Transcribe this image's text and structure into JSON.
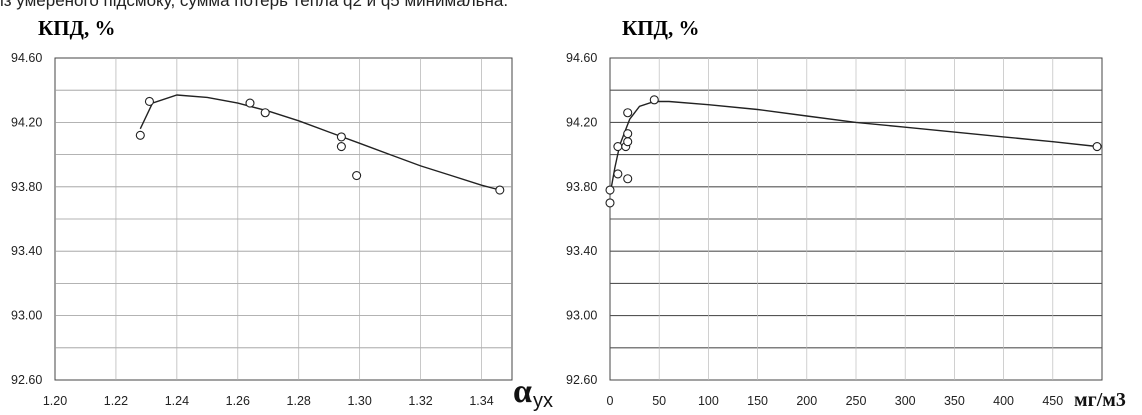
{
  "caption_fragment": "із умереного підсмоку, сумма потерь тепла q2 и q5 минимальна.",
  "chart_data": [
    {
      "type": "scatter",
      "title": "КПД, %",
      "xlabel": "αух",
      "xlabel_main": "α",
      "xlabel_sub": "ух",
      "ylabel": "КПД, %",
      "xlim": [
        1.2,
        1.35
      ],
      "ylim": [
        92.6,
        94.6
      ],
      "xticks": [
        "1.20",
        "1.22",
        "1.24",
        "1.26",
        "1.28",
        "1.30",
        "1.32",
        "1.34"
      ],
      "xtick_values": [
        1.2,
        1.22,
        1.24,
        1.26,
        1.28,
        1.3,
        1.32,
        1.34
      ],
      "yticks": [
        "94.60",
        "94.20",
        "93.80",
        "93.40",
        "93.00",
        "92.60"
      ],
      "ytick_values": [
        94.6,
        94.2,
        93.8,
        93.4,
        93.0,
        92.6
      ],
      "grid": true,
      "points": [
        {
          "x": 1.228,
          "y": 94.12
        },
        {
          "x": 1.231,
          "y": 94.33
        },
        {
          "x": 1.264,
          "y": 94.32
        },
        {
          "x": 1.269,
          "y": 94.26
        },
        {
          "x": 1.294,
          "y": 94.11
        },
        {
          "x": 1.294,
          "y": 94.05
        },
        {
          "x": 1.299,
          "y": 93.87
        },
        {
          "x": 1.346,
          "y": 93.78
        }
      ],
      "trend": [
        {
          "x": 1.228,
          "y": 94.16
        },
        {
          "x": 1.232,
          "y": 94.32
        },
        {
          "x": 1.24,
          "y": 94.37
        },
        {
          "x": 1.25,
          "y": 94.355
        },
        {
          "x": 1.26,
          "y": 94.32
        },
        {
          "x": 1.27,
          "y": 94.27
        },
        {
          "x": 1.28,
          "y": 94.21
        },
        {
          "x": 1.29,
          "y": 94.14
        },
        {
          "x": 1.3,
          "y": 94.07
        },
        {
          "x": 1.31,
          "y": 94.0
        },
        {
          "x": 1.32,
          "y": 93.93
        },
        {
          "x": 1.33,
          "y": 93.87
        },
        {
          "x": 1.34,
          "y": 93.81
        },
        {
          "x": 1.346,
          "y": 93.78
        }
      ]
    },
    {
      "type": "scatter",
      "title": "КПД, %",
      "xlabel": "мг/м3",
      "xlim": [
        0,
        500
      ],
      "ylim": [
        92.6,
        94.6
      ],
      "xticks": [
        "0",
        "50",
        "100",
        "150",
        "200",
        "250",
        "300",
        "350",
        "400",
        "450"
      ],
      "xtick_values": [
        0,
        50,
        100,
        150,
        200,
        250,
        300,
        350,
        400,
        450
      ],
      "yticks": [
        "94.60",
        "94.20",
        "93.80",
        "93.40",
        "93.00",
        "92.60"
      ],
      "ytick_values": [
        94.6,
        94.2,
        93.8,
        93.4,
        93.0,
        92.6
      ],
      "grid": true,
      "points": [
        {
          "x": 0,
          "y": 93.78
        },
        {
          "x": 0,
          "y": 93.7
        },
        {
          "x": 8,
          "y": 94.05
        },
        {
          "x": 8,
          "y": 93.88
        },
        {
          "x": 16,
          "y": 94.05
        },
        {
          "x": 18,
          "y": 93.85
        },
        {
          "x": 18,
          "y": 94.08
        },
        {
          "x": 18,
          "y": 94.13
        },
        {
          "x": 18,
          "y": 94.26
        },
        {
          "x": 45,
          "y": 94.34
        },
        {
          "x": 495,
          "y": 94.05
        }
      ],
      "trend": [
        {
          "x": 0,
          "y": 93.75
        },
        {
          "x": 5,
          "y": 93.92
        },
        {
          "x": 10,
          "y": 94.06
        },
        {
          "x": 20,
          "y": 94.22
        },
        {
          "x": 30,
          "y": 94.3
        },
        {
          "x": 45,
          "y": 94.33
        },
        {
          "x": 60,
          "y": 94.33
        },
        {
          "x": 100,
          "y": 94.31
        },
        {
          "x": 150,
          "y": 94.28
        },
        {
          "x": 200,
          "y": 94.24
        },
        {
          "x": 250,
          "y": 94.2
        },
        {
          "x": 300,
          "y": 94.17
        },
        {
          "x": 350,
          "y": 94.14
        },
        {
          "x": 400,
          "y": 94.11
        },
        {
          "x": 450,
          "y": 94.08
        },
        {
          "x": 495,
          "y": 94.05
        }
      ]
    }
  ]
}
